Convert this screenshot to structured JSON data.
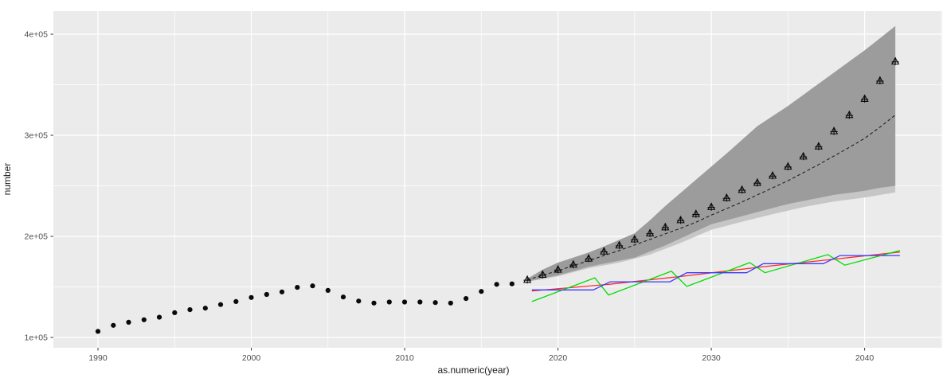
{
  "chart_data": {
    "type": "line",
    "subtype": "time-series forecast with fan interval, point markers and scenario lines",
    "title": "",
    "xlabel": "as.numeric(year)",
    "ylabel": "number",
    "xlim": [
      1987.09,
      2045.06
    ],
    "ylim": [
      89763,
      422834
    ],
    "grid": "on",
    "legend_position": "none",
    "x_major_ticks": [
      1990,
      2000,
      2010,
      2020,
      2030,
      2040
    ],
    "x_major_labels": [
      "1990",
      "2000",
      "2010",
      "2020",
      "2030",
      "2040"
    ],
    "x_minor_ticks": [
      1995,
      2005,
      2015,
      2025,
      2035,
      2045
    ],
    "y_major_ticks": [
      100000,
      200000,
      300000,
      400000
    ],
    "y_major_labels": [
      "1e+05",
      "2e+05",
      "3e+05",
      "4e+05"
    ],
    "y_minor_ticks": [
      150000,
      250000,
      350000
    ],
    "series": [
      {
        "name": "observed-history",
        "kind": "points",
        "marker": "circle",
        "color": "#0a0a0a",
        "data": [
          [
            1990,
            106000
          ],
          [
            1991,
            112000
          ],
          [
            1992,
            115000
          ],
          [
            1993,
            117500
          ],
          [
            1994,
            120000
          ],
          [
            1995,
            124500
          ],
          [
            1996,
            127500
          ],
          [
            1997,
            129000
          ],
          [
            1998,
            132500
          ],
          [
            1999,
            135500
          ],
          [
            2000,
            139500
          ],
          [
            2001,
            142500
          ],
          [
            2002,
            145000
          ],
          [
            2003,
            149500
          ],
          [
            2004,
            151000
          ],
          [
            2005,
            146500
          ],
          [
            2006,
            140000
          ],
          [
            2007,
            136000
          ],
          [
            2008,
            134000
          ],
          [
            2009,
            135000
          ],
          [
            2010,
            135000
          ],
          [
            2011,
            135000
          ],
          [
            2012,
            134500
          ],
          [
            2013,
            134000
          ],
          [
            2014,
            138500
          ],
          [
            2015,
            145500
          ],
          [
            2016,
            152500
          ],
          [
            2017,
            153000
          ]
        ]
      },
      {
        "name": "forecast-points",
        "kind": "points",
        "marker": "triangle-plus",
        "color": "#0a0a0a",
        "data": [
          [
            2018,
            157000
          ],
          [
            2019,
            162000
          ],
          [
            2020,
            167000
          ],
          [
            2021,
            172000
          ],
          [
            2022,
            178000
          ],
          [
            2023,
            185000
          ],
          [
            2024,
            191000
          ],
          [
            2025,
            197000
          ],
          [
            2026,
            203000
          ],
          [
            2027,
            209000
          ],
          [
            2028,
            216000
          ],
          [
            2029,
            222000
          ],
          [
            2030,
            229000
          ],
          [
            2031,
            238000
          ],
          [
            2032,
            246000
          ],
          [
            2033,
            253000
          ],
          [
            2034,
            260000
          ],
          [
            2035,
            269000
          ],
          [
            2036,
            279000
          ],
          [
            2037,
            289000
          ],
          [
            2038,
            304000
          ],
          [
            2039,
            320000
          ],
          [
            2040,
            336000
          ],
          [
            2041,
            354000
          ],
          [
            2042,
            373000
          ]
        ]
      },
      {
        "name": "forecast-mean",
        "kind": "line",
        "stroke": "dashed",
        "color": "#222222",
        "data": [
          [
            2018,
            157000
          ],
          [
            2019,
            161500
          ],
          [
            2020,
            166000
          ],
          [
            2021,
            171000
          ],
          [
            2022,
            176000
          ],
          [
            2023,
            181000
          ],
          [
            2024,
            186000
          ],
          [
            2025,
            191500
          ],
          [
            2026,
            197000
          ],
          [
            2027,
            202500
          ],
          [
            2028,
            208000
          ],
          [
            2029,
            214000
          ],
          [
            2030,
            221000
          ],
          [
            2031,
            227500
          ],
          [
            2032,
            234000
          ],
          [
            2033,
            241000
          ],
          [
            2034,
            248000
          ],
          [
            2035,
            255000
          ],
          [
            2036,
            263000
          ],
          [
            2037,
            271000
          ],
          [
            2038,
            279500
          ],
          [
            2039,
            288000
          ],
          [
            2040,
            297000
          ],
          [
            2041,
            308000
          ],
          [
            2042,
            320000
          ]
        ]
      },
      {
        "name": "scenario-red",
        "kind": "line",
        "stroke": "solid",
        "color": "#ff2a2a",
        "data": [
          [
            2018.3,
            146000
          ],
          [
            2023.3,
            152500
          ],
          [
            2028.4,
            161000
          ],
          [
            2033.4,
            170000
          ],
          [
            2038.4,
            178000
          ],
          [
            2042.3,
            184500
          ]
        ]
      },
      {
        "name": "scenario-green",
        "kind": "line",
        "stroke": "solid",
        "color": "#00dd00",
        "data": [
          [
            2018.3,
            135500
          ],
          [
            2022.4,
            159000
          ],
          [
            2023.3,
            142000
          ],
          [
            2027.4,
            165500
          ],
          [
            2028.4,
            150500
          ],
          [
            2032.5,
            174000
          ],
          [
            2033.5,
            164000
          ],
          [
            2037.6,
            182000
          ],
          [
            2038.7,
            171500
          ],
          [
            2042.3,
            186000
          ]
        ]
      },
      {
        "name": "scenario-blue",
        "kind": "line",
        "stroke": "solid",
        "color": "#3b3bff",
        "data": [
          [
            2018.3,
            147000
          ],
          [
            2022.3,
            147000
          ],
          [
            2023.4,
            155000
          ],
          [
            2027.3,
            155000
          ],
          [
            2028.4,
            164000
          ],
          [
            2032.3,
            164000
          ],
          [
            2033.4,
            173000
          ],
          [
            2037.3,
            173000
          ],
          [
            2038.4,
            181000
          ],
          [
            2042.3,
            181000
          ]
        ]
      }
    ],
    "interval": {
      "name": "forecast-interval-inner",
      "fill": "#9c9c9c",
      "upper": [
        [
          2018,
          158000
        ],
        [
          2019,
          167000
        ],
        [
          2020,
          174000
        ],
        [
          2021,
          179000
        ],
        [
          2022,
          184000
        ],
        [
          2023,
          190000
        ],
        [
          2024,
          196500
        ],
        [
          2025,
          203000
        ],
        [
          2026,
          216000
        ],
        [
          2027,
          230000
        ],
        [
          2028,
          243000
        ],
        [
          2029,
          256000
        ],
        [
          2030,
          269000
        ],
        [
          2031,
          282000
        ],
        [
          2032,
          295500
        ],
        [
          2033,
          309000
        ],
        [
          2034,
          319000
        ],
        [
          2035,
          329000
        ],
        [
          2036,
          340000
        ],
        [
          2037,
          351000
        ],
        [
          2038,
          362000
        ],
        [
          2039,
          373000
        ],
        [
          2040,
          384000
        ],
        [
          2041,
          396000
        ],
        [
          2042,
          408000
        ]
      ],
      "lower": [
        [
          2018,
          155500
        ],
        [
          2019,
          158500
        ],
        [
          2020,
          161500
        ],
        [
          2021,
          165500
        ],
        [
          2022,
          170000
        ],
        [
          2023,
          173000
        ],
        [
          2024,
          176000
        ],
        [
          2025,
          179000
        ],
        [
          2026,
          185000
        ],
        [
          2027,
          191000
        ],
        [
          2028,
          198000
        ],
        [
          2029,
          205000
        ],
        [
          2030,
          212000
        ],
        [
          2031,
          216000
        ],
        [
          2032,
          220000
        ],
        [
          2033,
          224000
        ],
        [
          2034,
          228000
        ],
        [
          2035,
          232000
        ],
        [
          2036,
          235000
        ],
        [
          2037,
          238000
        ],
        [
          2038,
          241000
        ],
        [
          2039,
          243000
        ],
        [
          2040,
          245000
        ],
        [
          2041,
          248000
        ],
        [
          2042,
          250000
        ]
      ]
    },
    "interval_outer": {
      "name": "forecast-interval-outer",
      "fill": "#c6c6c6",
      "lower": [
        [
          2018,
          155000
        ],
        [
          2020,
          160500
        ],
        [
          2022,
          168500
        ],
        [
          2024,
          174000
        ],
        [
          2026,
          182000
        ],
        [
          2028,
          193500
        ],
        [
          2030,
          206500
        ],
        [
          2032,
          214500
        ],
        [
          2034,
          222000
        ],
        [
          2036,
          229000
        ],
        [
          2038,
          234500
        ],
        [
          2040,
          238500
        ],
        [
          2042,
          243500
        ]
      ]
    },
    "style": {
      "panel_bg": "#ebebeb",
      "grid_color": "#ffffff",
      "tick_color": "#333333",
      "tick_label_color": "#4d4d4d",
      "axis_title_color": "#1a1a1a"
    }
  }
}
